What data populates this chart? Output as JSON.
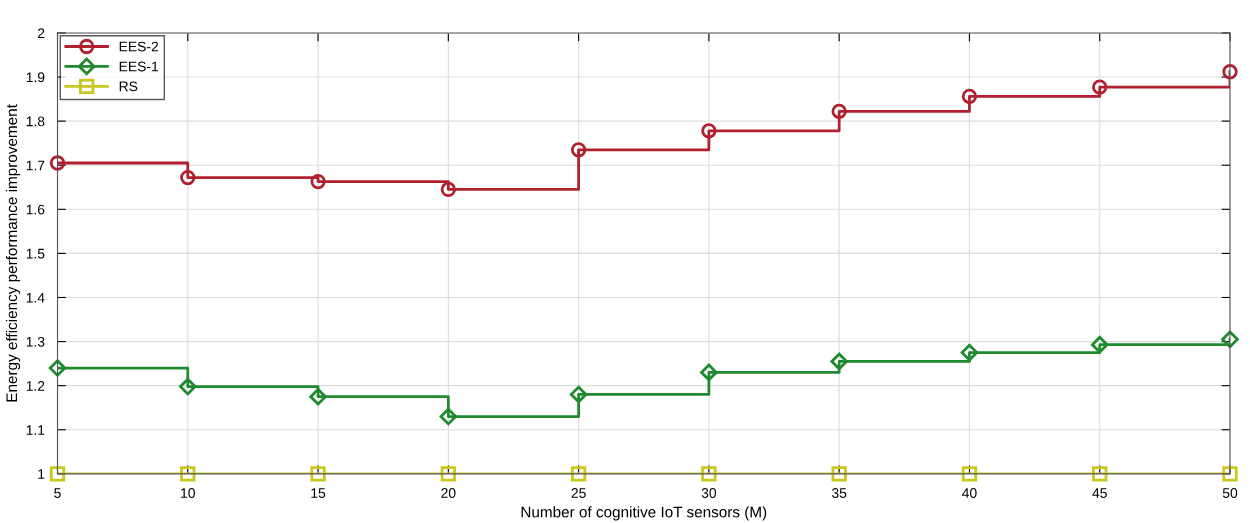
{
  "chart_data": {
    "type": "step",
    "xlabel": "Number of cognitive IoT sensors (M)",
    "ylabel": "Energy efficiency performance improvement",
    "x": [
      5,
      10,
      15,
      20,
      25,
      30,
      35,
      40,
      45,
      50
    ],
    "series": [
      {
        "name": "EES-2",
        "color": "#b0202e",
        "marker": "circle",
        "values": [
          1.705,
          1.672,
          1.663,
          1.645,
          1.735,
          1.778,
          1.822,
          1.856,
          1.877,
          1.912
        ]
      },
      {
        "name": "EES-1",
        "color": "#1f8a2e",
        "marker": "diamond",
        "values": [
          1.24,
          1.198,
          1.175,
          1.13,
          1.18,
          1.23,
          1.255,
          1.275,
          1.293,
          1.305
        ]
      },
      {
        "name": "RS",
        "color": "#c8c81e",
        "marker": "square",
        "values": [
          1,
          1,
          1,
          1,
          1,
          1,
          1,
          1,
          1,
          1
        ]
      }
    ],
    "xlim": [
      5,
      50
    ],
    "xticks": [
      5,
      10,
      15,
      20,
      25,
      30,
      35,
      40,
      45,
      50
    ],
    "ylim": [
      1,
      2
    ],
    "yticks": [
      1,
      1.1,
      1.2,
      1.3,
      1.4,
      1.5,
      1.6,
      1.7,
      1.8,
      1.9,
      2
    ],
    "grid": true,
    "legend": "top left"
  }
}
